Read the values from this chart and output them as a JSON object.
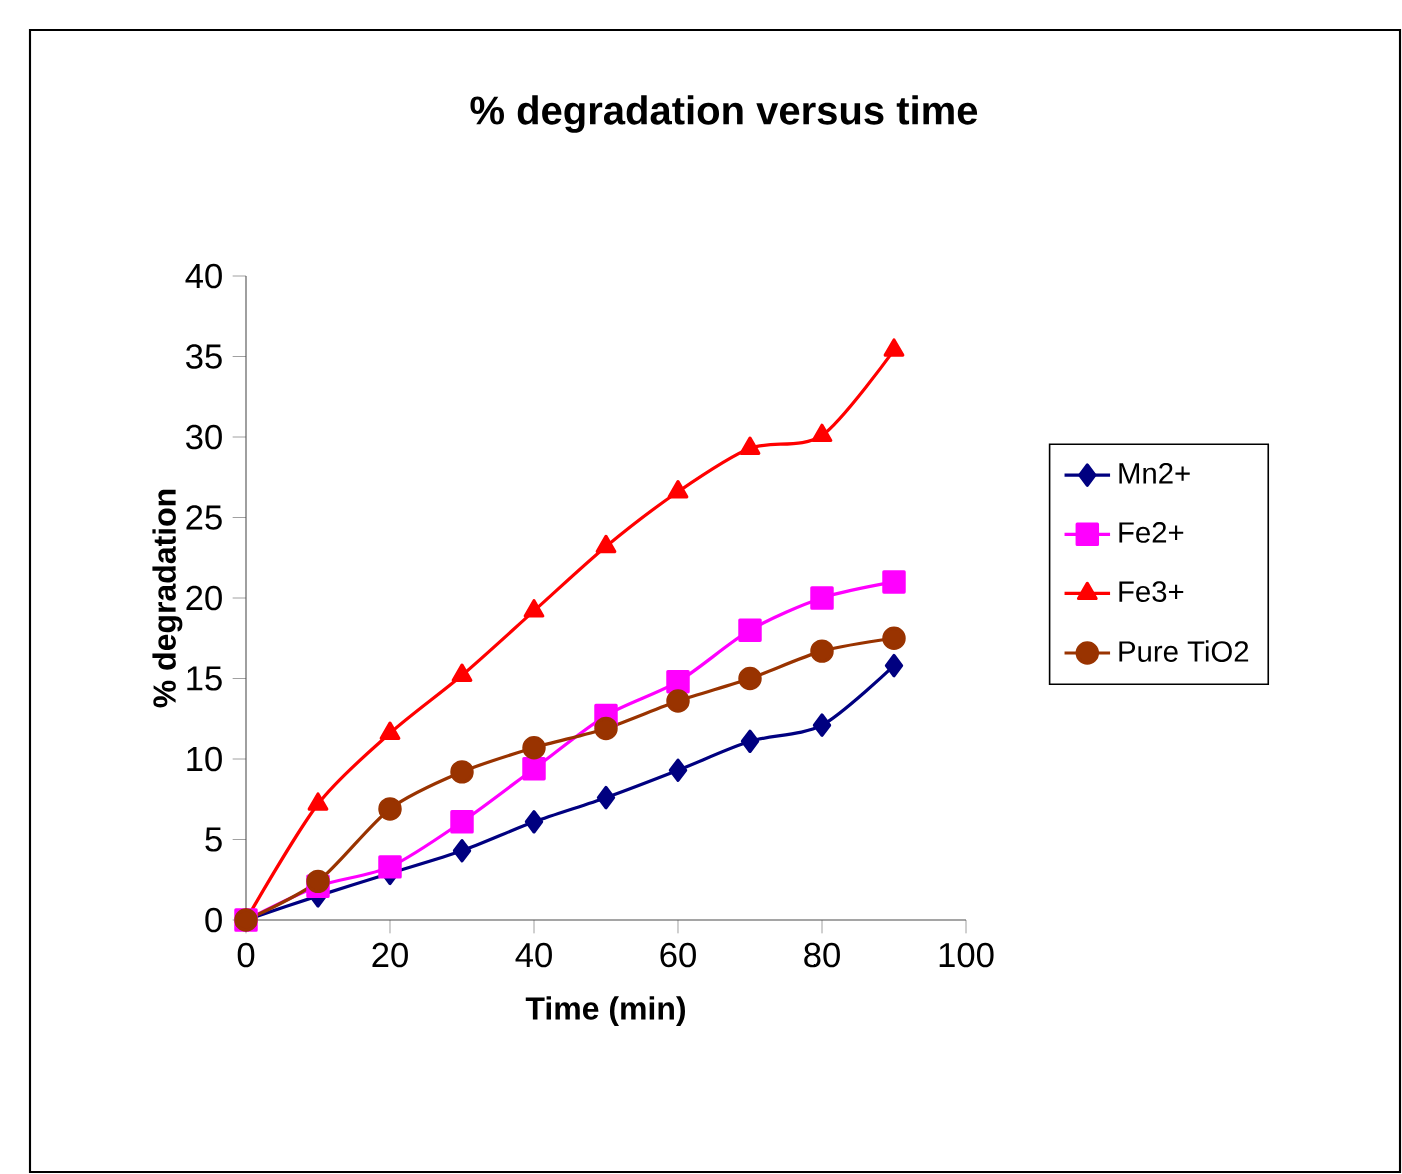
{
  "chart_data": {
    "type": "line",
    "title": "% degradation versus time",
    "xlabel": "Time (min)",
    "ylabel": "% degradation",
    "x": [
      0,
      10,
      20,
      30,
      40,
      50,
      60,
      70,
      80,
      90
    ],
    "series": [
      {
        "name": "Mn2+",
        "color": "#000080",
        "marker": "diamond",
        "values": [
          0,
          1.5,
          2.9,
          4.3,
          6.1,
          7.6,
          9.3,
          11.1,
          12.1,
          15.8
        ]
      },
      {
        "name": "Fe2+",
        "color": "#ff00ff",
        "marker": "square",
        "values": [
          0,
          2.1,
          3.3,
          6.1,
          9.4,
          12.7,
          14.8,
          18.0,
          20.0,
          21.0
        ]
      },
      {
        "name": "Fe3+",
        "color": "#ff0000",
        "marker": "triangle",
        "values": [
          0,
          7.2,
          11.6,
          15.2,
          19.2,
          23.2,
          26.6,
          29.3,
          30.1,
          35.4
        ]
      },
      {
        "name": "Pure TiO2",
        "color": "#993300",
        "marker": "circle",
        "values": [
          0,
          2.4,
          6.9,
          9.2,
          10.7,
          11.9,
          13.6,
          15.0,
          16.7,
          17.5
        ]
      }
    ],
    "xlim": [
      0,
      100
    ],
    "xticks": [
      0,
      20,
      40,
      60,
      80,
      100
    ],
    "ylim": [
      0,
      40
    ],
    "yticks": [
      0,
      5,
      10,
      15,
      20,
      25,
      30,
      35,
      40
    ],
    "grid": false,
    "legend": "right",
    "line_style": "solid"
  }
}
